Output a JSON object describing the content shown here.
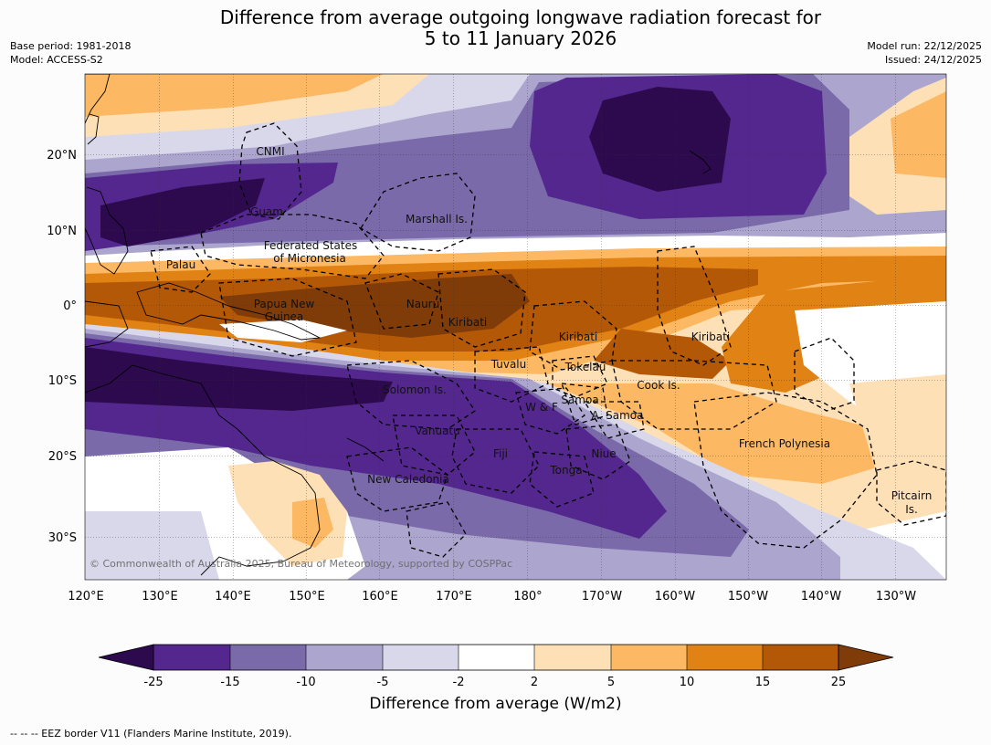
{
  "title": {
    "line1": "Difference from average outgoing longwave radiation forecast for",
    "line2": "5 to 11 January 2026"
  },
  "meta_left": {
    "base_period": "Base period: 1981-2018",
    "model": "Model: ACCESS-S2"
  },
  "meta_right": {
    "model_run": "Model run: 22/12/2025",
    "issued": "Issued: 24/12/2025"
  },
  "copyright": "© Commonwealth of Australia 2025, Bureau of Meteorology, supported by COSPPac",
  "lon_ticks": [
    "120°E",
    "130°E",
    "140°E",
    "150°E",
    "160°E",
    "170°E",
    "180°",
    "170°W",
    "160°W",
    "150°W",
    "140°W",
    "130°W"
  ],
  "lat_ticks": [
    "20°N",
    "10°N",
    "0°",
    "10°S",
    "20°S",
    "30°S"
  ],
  "region_labels": {
    "cnmi": "CNMI",
    "guam": "Guam",
    "marshall": "Marshall Is.",
    "fsm1": "Federated States",
    "fsm2": "of Micronesia",
    "palau": "Palau",
    "png1": "Papua New",
    "png2": "Guinea",
    "nauru": "Nauru",
    "kiribati_w": "Kiribati",
    "kiribati_c": "Kiribati",
    "kiribati_e": "Kiribati",
    "tuvalu": "Tuvalu",
    "tokelau": "Tokelau",
    "cook": "Cook Is.",
    "solomon": "Solomon Is.",
    "wf": "W & F",
    "samoa": "Samoa",
    "asamoa": "A. Samoa",
    "vanuatu": "Vanuatu",
    "fiji": "Fiji",
    "niue": "Niue",
    "tonga": "Tonga",
    "frpoly": "French Polynesia",
    "newcal": "New Caledonia",
    "pitcairn1": "Pitcairn",
    "pitcairn2": "Is."
  },
  "colorbar": {
    "ticks": [
      "-25",
      "-15",
      "-10",
      "-5",
      "-2",
      "2",
      "5",
      "10",
      "15",
      "25"
    ],
    "colors": [
      "#2d0a4e",
      "#54278f",
      "#7b6aaa",
      "#aca6cf",
      "#d9d8ea",
      "#ffffff",
      "#fee0b6",
      "#fdb863",
      "#e08214",
      "#b35806",
      "#7f3b08"
    ],
    "title": "Difference from average (W/m2)"
  },
  "palette": {
    "c_m30": "#2d0a4e",
    "c_m20": "#54278f",
    "c_m12": "#7b6aaa",
    "c_m7": "#aca6cf",
    "c_m3": "#d9d8ea",
    "c_0": "#ffffff",
    "c_p3": "#fee0b6",
    "c_p7": "#fdb863",
    "c_p12": "#e08214",
    "c_p20": "#b35806",
    "c_p30": "#7f3b08"
  },
  "footer": "--  --  -- EEZ border V11 (Flanders Marine Institute, 2019)."
}
